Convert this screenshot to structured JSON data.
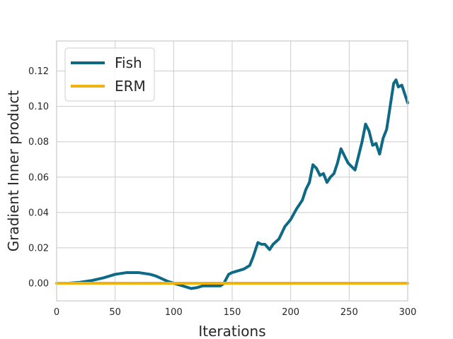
{
  "chart_data": {
    "type": "line",
    "title": "",
    "xlabel": "Iterations",
    "ylabel": "Gradient Inner product",
    "xlim": [
      0,
      300
    ],
    "ylim": [
      -0.01,
      0.137
    ],
    "xticks": [
      0,
      50,
      100,
      150,
      200,
      250,
      300
    ],
    "yticks": [
      0.0,
      0.02,
      0.04,
      0.06,
      0.08,
      0.1,
      0.12
    ],
    "ytick_labels": [
      "0.00",
      "0.02",
      "0.04",
      "0.06",
      "0.08",
      "0.10",
      "0.12"
    ],
    "grid": true,
    "legend_position": "top-left",
    "series": [
      {
        "name": "Fish",
        "color": "#0d6985",
        "x": [
          0,
          10,
          20,
          30,
          40,
          50,
          55,
          60,
          65,
          70,
          75,
          80,
          85,
          90,
          95,
          100,
          105,
          110,
          115,
          120,
          125,
          130,
          135,
          140,
          143,
          147,
          150,
          155,
          160,
          165,
          168,
          172,
          175,
          178,
          182,
          185,
          190,
          195,
          200,
          205,
          210,
          213,
          216,
          219,
          222,
          225,
          228,
          231,
          234,
          237,
          240,
          243,
          246,
          249,
          252,
          255,
          258,
          261,
          264,
          267,
          270,
          273,
          276,
          279,
          282,
          285,
          288,
          290,
          292,
          295,
          298,
          300
        ],
        "y": [
          0.0,
          0.0,
          0.0005,
          0.0015,
          0.003,
          0.005,
          0.0055,
          0.006,
          0.006,
          0.006,
          0.0055,
          0.005,
          0.004,
          0.0025,
          0.001,
          0.0,
          -0.001,
          -0.002,
          -0.003,
          -0.0025,
          -0.0015,
          -0.0015,
          -0.0015,
          -0.0015,
          0.0,
          0.005,
          0.006,
          0.007,
          0.008,
          0.01,
          0.015,
          0.023,
          0.022,
          0.022,
          0.019,
          0.022,
          0.025,
          0.032,
          0.036,
          0.042,
          0.047,
          0.053,
          0.057,
          0.067,
          0.065,
          0.061,
          0.062,
          0.057,
          0.06,
          0.062,
          0.068,
          0.076,
          0.072,
          0.068,
          0.066,
          0.064,
          0.072,
          0.08,
          0.09,
          0.086,
          0.078,
          0.079,
          0.073,
          0.082,
          0.087,
          0.1,
          0.113,
          0.115,
          0.111,
          0.112,
          0.106,
          0.102
        ]
      },
      {
        "name": "ERM",
        "color": "#f0b30e",
        "x": [
          0,
          300
        ],
        "y": [
          0.0,
          0.0
        ]
      }
    ]
  }
}
